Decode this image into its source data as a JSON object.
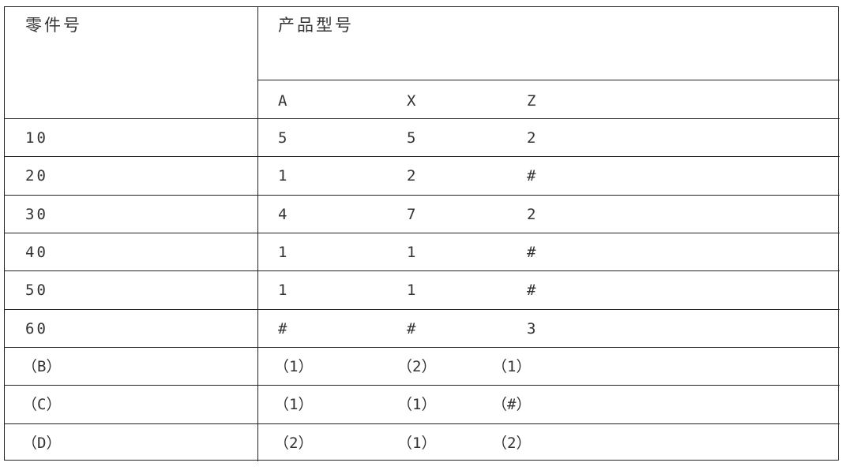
{
  "header": {
    "part_no": "零件号",
    "product_model": "产品型号",
    "models": [
      "A",
      "X",
      "Z"
    ]
  },
  "rows": [
    {
      "part": "10",
      "cells": [
        "5",
        "5",
        "2"
      ]
    },
    {
      "part": "20",
      "cells": [
        "1",
        "2",
        "#"
      ]
    },
    {
      "part": "30",
      "cells": [
        "4",
        "7",
        "2"
      ]
    },
    {
      "part": "40",
      "cells": [
        "1",
        "1",
        "#"
      ]
    },
    {
      "part": "50",
      "cells": [
        "1",
        "1",
        "#"
      ]
    },
    {
      "part": "60",
      "cells": [
        "#",
        "#",
        "3"
      ]
    },
    {
      "part": "（B）",
      "cells": [
        "（1）",
        "（2）",
        "（1）"
      ]
    },
    {
      "part": "（C）",
      "cells": [
        "（1）",
        "（1）",
        "（#）"
      ]
    },
    {
      "part": "（D）",
      "cells": [
        "（2）",
        "（1）",
        "（2）"
      ]
    }
  ]
}
